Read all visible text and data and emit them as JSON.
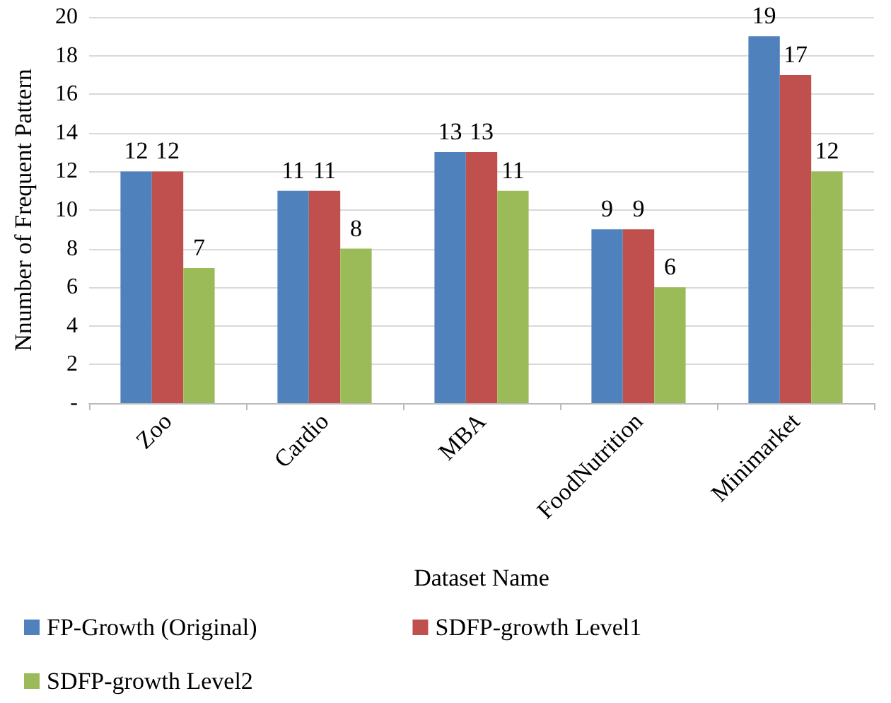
{
  "chart_data": {
    "type": "bar",
    "xlabel": "Dataset Name",
    "ylabel": "Nnumber of Frequent Pattern",
    "categories": [
      "Zoo",
      "Cardio",
      "MBA",
      "FoodNutrition",
      "Minimarket"
    ],
    "series": [
      {
        "name": "FP-Growth (Original)",
        "color": "#4f81bd",
        "values": [
          12,
          11,
          13,
          9,
          19
        ]
      },
      {
        "name": "SDFP-growth Level1",
        "color": "#c0504d",
        "values": [
          12,
          11,
          13,
          9,
          17
        ]
      },
      {
        "name": "SDFP-growth Level2",
        "color": "#9bbb59",
        "values": [
          7,
          8,
          11,
          6,
          12
        ]
      }
    ],
    "ylim": [
      0,
      20
    ],
    "yticks": [
      {
        "value": 0,
        "label": "-"
      },
      2,
      4,
      6,
      8,
      10,
      12,
      14,
      16,
      18,
      20
    ],
    "grid": "y",
    "legend": "bottom",
    "data_labels": true
  }
}
